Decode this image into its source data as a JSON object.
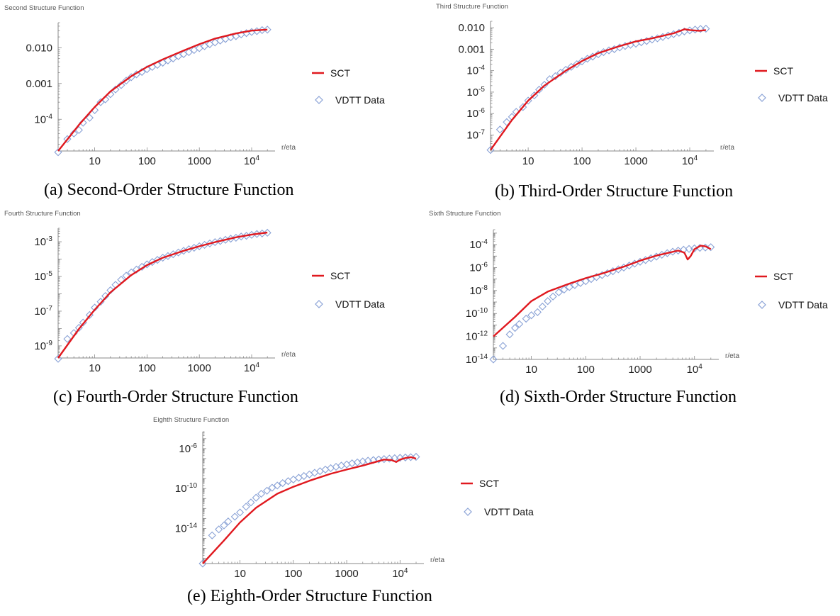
{
  "colors": {
    "sct": "#e0191f",
    "vdtt": "#8aa2d6",
    "axis": "#888888"
  },
  "chart_data": [
    {
      "type": "line",
      "title": "Second Structure Function",
      "caption": "(a) Second-Order Structure Function",
      "xlabel": "r/eta",
      "x_log": true,
      "y_log": true,
      "xlim": [
        2,
        28000
      ],
      "ylim": [
        1.3e-05,
        0.05
      ],
      "xticks": [
        {
          "v": 10,
          "label": "10"
        },
        {
          "v": 100,
          "label": "100"
        },
        {
          "v": 1000,
          "label": "1000"
        },
        {
          "v": 10000,
          "label": "10",
          "sup": "4"
        }
      ],
      "yticks": [
        {
          "v": 0.01,
          "label": "0.010"
        },
        {
          "v": 0.001,
          "label": "0.001"
        },
        {
          "v": 0.0001,
          "label": "10",
          "sup": "-4"
        }
      ],
      "series": [
        {
          "name": "SCT",
          "kind": "line",
          "x": [
            2,
            5,
            10,
            20,
            50,
            100,
            200,
            500,
            1000,
            2000,
            5000,
            10000,
            20000
          ],
          "y": [
            1.3e-05,
            7e-05,
            0.00022,
            0.0006,
            0.0016,
            0.0029,
            0.0047,
            0.0083,
            0.0125,
            0.018,
            0.025,
            0.03,
            0.032
          ]
        },
        {
          "name": "VDTT Data",
          "kind": "marker",
          "x": [
            2,
            3,
            4,
            5,
            6,
            8,
            10,
            13,
            16,
            20,
            25,
            32,
            40,
            50,
            63,
            80,
            100,
            126,
            158,
            200,
            251,
            316,
            398,
            501,
            631,
            794,
            1000,
            1259,
            1585,
            1995,
            2512,
            3162,
            3981,
            5012,
            6310,
            7943,
            10000,
            12589,
            15849,
            19953
          ],
          "y": [
            1.2e-05,
            2.8e-05,
            4e-05,
            5e-05,
            8e-05,
            0.00011,
            0.00018,
            0.0003,
            0.00036,
            0.0005,
            0.00068,
            0.0009,
            0.0012,
            0.0015,
            0.0018,
            0.0021,
            0.0025,
            0.0029,
            0.0033,
            0.0038,
            0.0044,
            0.005,
            0.0058,
            0.0066,
            0.0075,
            0.0086,
            0.0097,
            0.011,
            0.0125,
            0.014,
            0.0158,
            0.0175,
            0.0195,
            0.021,
            0.0235,
            0.0255,
            0.0275,
            0.029,
            0.031,
            0.032
          ]
        }
      ],
      "legend": [
        "SCT",
        "VDTT Data"
      ],
      "legend_position": "right"
    },
    {
      "type": "line",
      "title": "Third Structure Function",
      "caption": "(b) Third-Order Structure Function",
      "xlabel": "r/eta",
      "x_log": true,
      "y_log": true,
      "xlim": [
        2,
        28000
      ],
      "ylim": [
        1.8e-08,
        0.02
      ],
      "xticks": [
        {
          "v": 10,
          "label": "10"
        },
        {
          "v": 100,
          "label": "100"
        },
        {
          "v": 1000,
          "label": "1000"
        },
        {
          "v": 10000,
          "label": "10",
          "sup": "4"
        }
      ],
      "yticks": [
        {
          "v": 0.01,
          "label": "0.010"
        },
        {
          "v": 0.001,
          "label": "0.001"
        },
        {
          "v": 0.0001,
          "label": "10",
          "sup": "-4"
        },
        {
          "v": 1e-05,
          "label": "10",
          "sup": "-5"
        },
        {
          "v": 1e-06,
          "label": "10",
          "sup": "-6"
        },
        {
          "v": 1e-07,
          "label": "10",
          "sup": "-7"
        }
      ],
      "series": [
        {
          "name": "SCT",
          "kind": "line",
          "x": [
            2,
            5,
            10,
            20,
            50,
            100,
            200,
            500,
            1000,
            2000,
            5000,
            8000,
            10000,
            15000,
            20000
          ],
          "y": [
            2e-08,
            5e-07,
            4e-06,
            2e-05,
            0.0001,
            0.00028,
            0.00065,
            0.0014,
            0.0023,
            0.0032,
            0.0055,
            0.0085,
            0.0078,
            0.0072,
            0.0078
          ]
        },
        {
          "name": "VDTT Data",
          "kind": "marker",
          "x": [
            2,
            3,
            4,
            5,
            6,
            8,
            10,
            13,
            16,
            20,
            25,
            32,
            40,
            50,
            63,
            80,
            100,
            126,
            158,
            200,
            251,
            316,
            398,
            501,
            631,
            794,
            1000,
            1259,
            1585,
            1995,
            2512,
            3162,
            3981,
            5012,
            6310,
            7943,
            10000,
            12589,
            15849,
            19953
          ],
          "y": [
            2e-08,
            1.8e-07,
            4e-07,
            7e-07,
            1.2e-06,
            2e-06,
            4e-06,
            7e-06,
            1.3e-05,
            2.2e-05,
            4e-05,
            5.5e-05,
            8e-05,
            0.00011,
            0.00015,
            0.0002,
            0.00027,
            0.00036,
            0.00045,
            0.00058,
            0.00073,
            0.00088,
            0.001,
            0.0012,
            0.0014,
            0.0016,
            0.0018,
            0.0021,
            0.0024,
            0.0028,
            0.0032,
            0.0037,
            0.0043,
            0.005,
            0.0058,
            0.0067,
            0.0075,
            0.0082,
            0.0088,
            0.009
          ]
        }
      ],
      "legend": [
        "SCT",
        "VDTT Data"
      ],
      "legend_position": "right"
    },
    {
      "type": "line",
      "title": "Fourth Structure Function",
      "caption": "(c) Fourth-Order Structure Function",
      "xlabel": "r/eta",
      "x_log": true,
      "y_log": true,
      "xlim": [
        2,
        28000
      ],
      "ylim": [
        2e-10,
        0.006
      ],
      "xticks": [
        {
          "v": 10,
          "label": "10"
        },
        {
          "v": 100,
          "label": "100"
        },
        {
          "v": 1000,
          "label": "1000"
        },
        {
          "v": 10000,
          "label": "10",
          "sup": "4"
        }
      ],
      "yticks": [
        {
          "v": 0.001,
          "label": "10",
          "sup": "-3"
        },
        {
          "v": 1e-05,
          "label": "10",
          "sup": "-5"
        },
        {
          "v": 1e-07,
          "label": "10",
          "sup": "-7"
        },
        {
          "v": 1e-09,
          "label": "10",
          "sup": "-9"
        }
      ],
      "series": [
        {
          "name": "SCT",
          "kind": "line",
          "x": [
            2,
            5,
            10,
            20,
            50,
            100,
            200,
            500,
            1000,
            2000,
            5000,
            10000,
            20000
          ],
          "y": [
            2e-10,
            9.5e-09,
            1.2e-07,
            1.2e-06,
            1.2e-05,
            4.5e-05,
            0.00012,
            0.0003,
            0.00055,
            0.00095,
            0.0018,
            0.0026,
            0.0034
          ]
        },
        {
          "name": "VDTT Data",
          "kind": "marker",
          "x": [
            2,
            3,
            4,
            5,
            6,
            8,
            10,
            13,
            16,
            20,
            25,
            32,
            40,
            50,
            63,
            80,
            100,
            126,
            158,
            200,
            251,
            316,
            398,
            501,
            631,
            794,
            1000,
            1259,
            1585,
            1995,
            2512,
            3162,
            3981,
            5012,
            6310,
            7943,
            10000,
            12589,
            15849,
            19953
          ],
          "y": [
            1.8e-10,
            2.5e-09,
            5.5e-09,
            1.1e-08,
            2.2e-08,
            6e-08,
            1.6e-07,
            3.5e-07,
            7.5e-07,
            1.6e-06,
            3.3e-06,
            6.5e-06,
            1.1e-05,
            1.7e-05,
            2.5e-05,
            3.6e-05,
            5e-05,
            6.8e-05,
            9e-05,
            0.00012,
            0.00015,
            0.00019,
            0.00024,
            0.0003,
            0.00037,
            0.00045,
            0.00055,
            0.00066,
            0.0008,
            0.00095,
            0.0011,
            0.0013,
            0.0015,
            0.0017,
            0.002,
            0.0022,
            0.0025,
            0.0028,
            0.003,
            0.0033
          ]
        }
      ],
      "legend": [
        "SCT",
        "VDTT Data"
      ],
      "legend_position": "right"
    },
    {
      "type": "line",
      "title": "Sixth Structure Function",
      "caption": "(d) Sixth-Order Structure Function",
      "xlabel": "r/eta",
      "x_log": true,
      "y_log": true,
      "xlim": [
        2,
        28000
      ],
      "ylim": [
        1e-14,
        0.002
      ],
      "xticks": [
        {
          "v": 10,
          "label": "10"
        },
        {
          "v": 100,
          "label": "100"
        },
        {
          "v": 1000,
          "label": "1000"
        },
        {
          "v": 10000,
          "label": "10",
          "sup": "4"
        }
      ],
      "yticks": [
        {
          "v": 0.0001,
          "label": "10",
          "sup": "-4"
        },
        {
          "v": 1e-06,
          "label": "10",
          "sup": "-6"
        },
        {
          "v": 1e-08,
          "label": "10",
          "sup": "-8"
        },
        {
          "v": 1e-10,
          "label": "10",
          "sup": "-10"
        },
        {
          "v": 1e-12,
          "label": "10",
          "sup": "-12"
        },
        {
          "v": 1e-14,
          "label": "10",
          "sup": "-14"
        }
      ],
      "series": [
        {
          "name": "SCT",
          "kind": "line",
          "x": [
            2,
            5,
            10,
            20,
            50,
            100,
            200,
            500,
            1000,
            2000,
            5000,
            6500,
            7500,
            8500,
            10000,
            13000,
            16000,
            20000
          ],
          "y": [
            1e-12,
            5e-11,
            1.2e-09,
            8e-09,
            4e-08,
            1.2e-07,
            3e-07,
            1.2e-06,
            4e-06,
            1.1e-05,
            3e-05,
            2e-05,
            5e-06,
            1e-05,
            4e-05,
            8e-05,
            7e-05,
            4e-05
          ]
        },
        {
          "name": "VDTT Data",
          "kind": "marker",
          "x": [
            2,
            3,
            4,
            5,
            6,
            8,
            10,
            13,
            16,
            20,
            25,
            32,
            40,
            50,
            63,
            80,
            100,
            126,
            158,
            200,
            251,
            316,
            398,
            501,
            631,
            794,
            1000,
            1259,
            1585,
            1995,
            2512,
            3162,
            3981,
            5012,
            6310,
            7943,
            10000,
            12589,
            15849,
            19953
          ],
          "y": [
            1e-14,
            1.5e-13,
            1.5e-12,
            5.5e-12,
            1.2e-11,
            3.5e-11,
            7e-11,
            1.3e-10,
            4e-10,
            1.2e-09,
            3e-09,
            7e-09,
            1.2e-08,
            2e-08,
            3e-08,
            4.5e-08,
            6.5e-08,
            1e-07,
            1.5e-07,
            2.2e-07,
            3.2e-07,
            4.8e-07,
            7e-07,
            1e-06,
            1.5e-06,
            2.2e-06,
            3.2e-06,
            4.5e-06,
            6.5e-06,
            9e-06,
            1.3e-05,
            1.8e-05,
            2.4e-05,
            3e-05,
            3.6e-05,
            4.2e-05,
            4.7e-05,
            5.2e-05,
            5.6e-05,
            6e-05
          ]
        }
      ],
      "legend": [
        "SCT",
        "VDTT Data"
      ],
      "legend_position": "right"
    },
    {
      "type": "line",
      "title": "Eighth Structure Function",
      "caption": "(e) Eighth-Order Structure Function",
      "xlabel": "r/eta",
      "x_log": true,
      "y_log": true,
      "xlim": [
        2,
        28000
      ],
      "ylim": [
        3e-18,
        5e-05
      ],
      "xticks": [
        {
          "v": 10,
          "label": "10"
        },
        {
          "v": 100,
          "label": "100"
        },
        {
          "v": 1000,
          "label": "1000"
        },
        {
          "v": 10000,
          "label": "10",
          "sup": "4"
        }
      ],
      "yticks": [
        {
          "v": 1e-06,
          "label": "10",
          "sup": "-6"
        },
        {
          "v": 1e-10,
          "label": "10",
          "sup": "-10"
        },
        {
          "v": 1e-14,
          "label": "10",
          "sup": "-14"
        }
      ],
      "series": [
        {
          "name": "SCT",
          "kind": "line",
          "x": [
            2,
            5,
            10,
            20,
            50,
            100,
            200,
            500,
            1000,
            2000,
            5000,
            7000,
            8500,
            10000,
            13000,
            16000,
            20000
          ],
          "y": [
            3e-18,
            6e-16,
            4e-14,
            1.2e-12,
            3e-11,
            1.5e-10,
            6e-10,
            3e-09,
            8e-09,
            2e-08,
            8e-08,
            7e-08,
            4.5e-08,
            8e-08,
            1.2e-07,
            1.4e-07,
            1e-07
          ]
        },
        {
          "name": "VDTT Data",
          "kind": "marker",
          "x": [
            2,
            3,
            4,
            5,
            6,
            8,
            10,
            13,
            16,
            20,
            25,
            32,
            40,
            50,
            63,
            80,
            100,
            126,
            158,
            200,
            251,
            316,
            398,
            501,
            631,
            794,
            1000,
            1259,
            1585,
            1995,
            2512,
            3162,
            3981,
            5012,
            6310,
            7943,
            10000,
            12589,
            15849,
            19953
          ],
          "y": [
            3e-18,
            2e-15,
            8e-15,
            2e-14,
            5e-14,
            1.5e-13,
            4e-13,
            1.5e-12,
            4e-12,
            1.2e-11,
            3e-11,
            6e-11,
            1.2e-10,
            2e-10,
            3.5e-10,
            5.5e-10,
            8e-10,
            1.2e-09,
            1.8e-09,
            2.6e-09,
            3.8e-09,
            5.5e-09,
            8e-09,
            1.1e-08,
            1.5e-08,
            2e-08,
            2.6e-08,
            3.4e-08,
            4.2e-08,
            5.2e-08,
            6.2e-08,
            7.2e-08,
            8.2e-08,
            9e-08,
            1e-07,
            1.1e-07,
            1.2e-07,
            1.3e-07,
            1.4e-07,
            1.5e-07
          ]
        }
      ],
      "legend": [
        "SCT",
        "VDTT Data"
      ],
      "legend_position": "right"
    }
  ]
}
